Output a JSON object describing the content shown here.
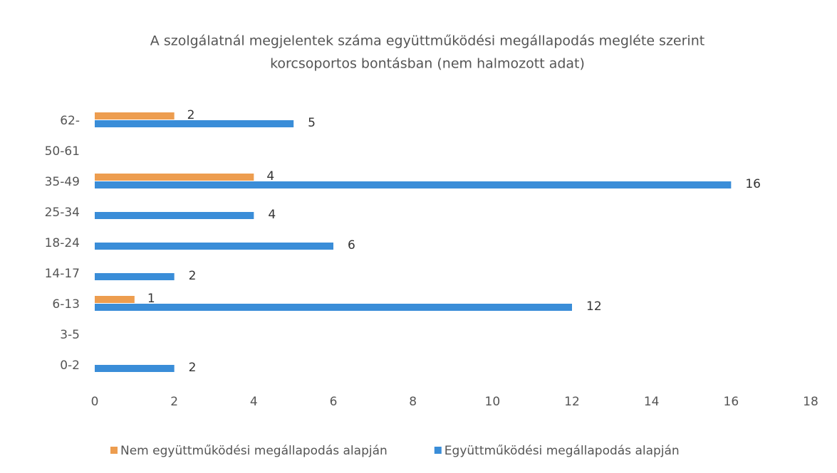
{
  "chart_data": {
    "type": "hbar",
    "title": [
      "A szolgálatnál megjelentek száma együttműködési megállapodás megléte szerint",
      "korcsoportos bontásban (nem halmozott adat)"
    ],
    "categories": [
      "0-2",
      "3-5",
      "6-13",
      "14-17",
      "18-24",
      "25-34",
      "35-49",
      "50-61",
      "62-"
    ],
    "series": [
      {
        "name": "Nem együttműködési megállapodás alapján",
        "color": "#ed9d4f",
        "values": [
          null,
          null,
          1,
          null,
          null,
          null,
          4,
          null,
          2
        ]
      },
      {
        "name": "Együttműködési megállapodás alapján",
        "color": "#3a8dd8",
        "values": [
          2,
          null,
          12,
          2,
          6,
          4,
          16,
          null,
          5
        ]
      }
    ],
    "xlim": [
      0,
      18
    ],
    "xticks": [
      0,
      2,
      4,
      6,
      8,
      10,
      12,
      14,
      16,
      18
    ],
    "grid": false,
    "legend": "bottom"
  }
}
